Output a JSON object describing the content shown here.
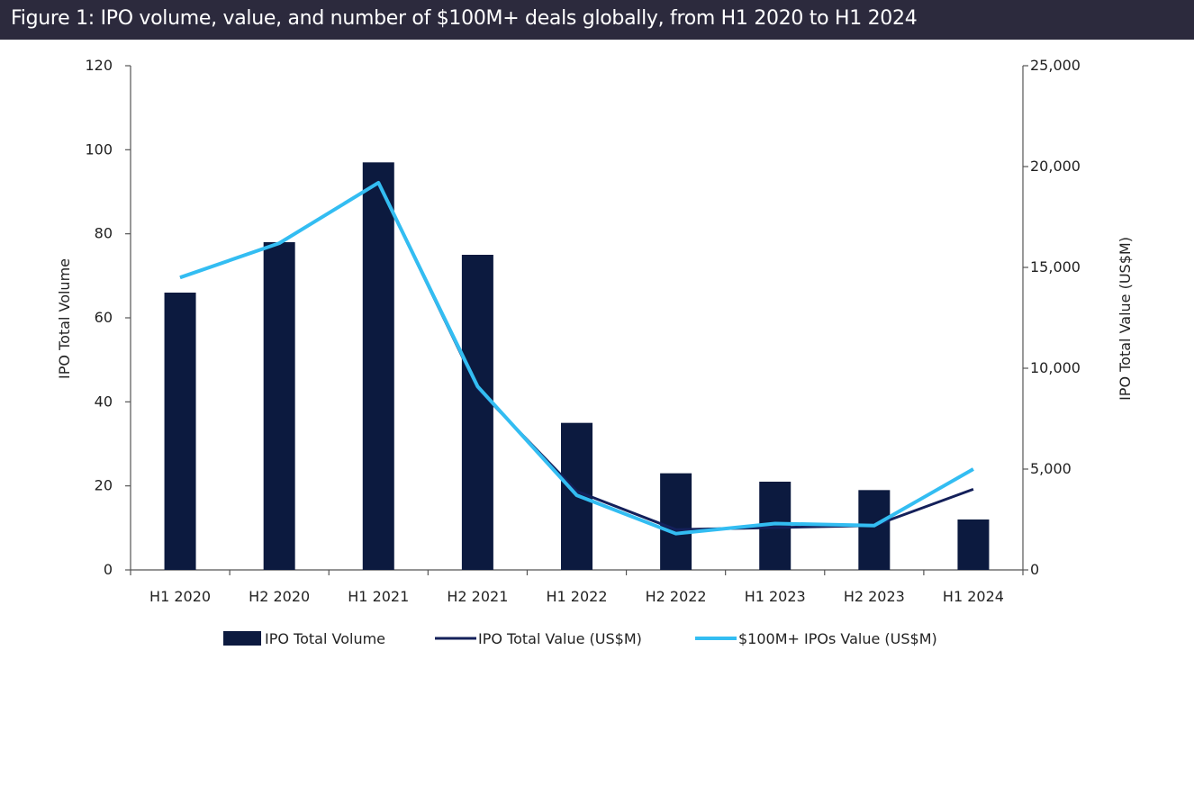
{
  "figure": {
    "title": "Figure 1: IPO volume, value, and number of $100M+ deals globally, from H1 2020 to H1 2024"
  },
  "chart_data": {
    "type": "bar",
    "categories": [
      "H1 2020",
      "H2 2020",
      "H1 2021",
      "H2 2021",
      "H1 2022",
      "H2 2022",
      "H1 2023",
      "H2 2023",
      "H1 2024"
    ],
    "series": [
      {
        "name": "IPO Total Volume",
        "kind": "bar",
        "axis": "left",
        "color": "#0c1a3f",
        "values": [
          66,
          78,
          97,
          75,
          35,
          23,
          21,
          19,
          12
        ]
      },
      {
        "name": "IPO Total Value (US$M)",
        "kind": "line",
        "axis": "right",
        "color": "#14205a",
        "values": [
          14500,
          16200,
          19200,
          9000,
          3900,
          2000,
          2100,
          2200,
          4000
        ]
      },
      {
        "name": "$100M+ IPOs Value (US$M)",
        "kind": "line",
        "axis": "right",
        "color": "#33bdf2",
        "values": [
          14500,
          16200,
          19200,
          9100,
          3700,
          1800,
          2300,
          2200,
          5000
        ]
      }
    ],
    "ylabel": "IPO Total Volume",
    "y2label": "IPO Total Value (US$M)",
    "ylim": [
      0,
      120
    ],
    "yticks": [
      "0",
      "20",
      "40",
      "60",
      "80",
      "100",
      "120"
    ],
    "y2lim": [
      0,
      25000
    ],
    "y2ticks": [
      "0",
      "5,000",
      "10,000",
      "15,000",
      "20,000",
      "25,000"
    ],
    "grid": false,
    "legend_position": "bottom"
  }
}
